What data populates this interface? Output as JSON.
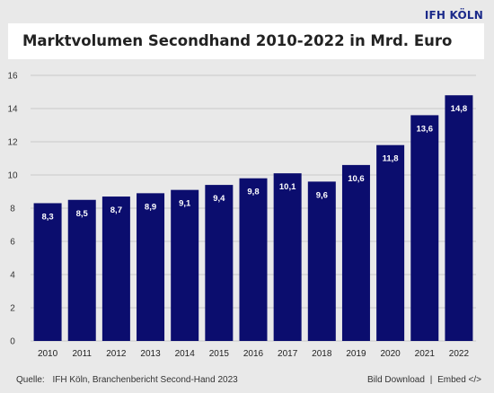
{
  "brand": "IFH KÖLN",
  "footer": {
    "source_label": "Quelle:",
    "source_text": "IFH Köln, Branchenbericht Second-Hand 2023",
    "download_label": "Bild Download",
    "separator": "|",
    "embed_label": "Embed </>"
  },
  "colors": {
    "bar": "#0b0d6e",
    "label": "#ffffff",
    "grid": "#c9c9c9",
    "brand": "#1b2a8a"
  },
  "chart_data": {
    "type": "bar",
    "title": "Marktvolumen Secondhand 2010-2022 in Mrd. Euro",
    "xlabel": "",
    "ylabel": "",
    "categories": [
      "2010",
      "2011",
      "2012",
      "2013",
      "2014",
      "2015",
      "2016",
      "2017",
      "2018",
      "2019",
      "2020",
      "2021",
      "2022"
    ],
    "values": [
      8.3,
      8.5,
      8.7,
      8.9,
      9.1,
      9.4,
      9.8,
      10.1,
      9.6,
      10.6,
      11.8,
      13.6,
      14.8
    ],
    "value_labels": [
      "8,3",
      "8,5",
      "8,7",
      "8,9",
      "9,1",
      "9,4",
      "9,8",
      "10,1",
      "9,6",
      "10,6",
      "11,8",
      "13,6",
      "14,8"
    ],
    "ylim": [
      0,
      16
    ],
    "yticks": [
      0,
      2,
      4,
      6,
      8,
      10,
      12,
      14,
      16
    ],
    "grid": "horizontal"
  }
}
